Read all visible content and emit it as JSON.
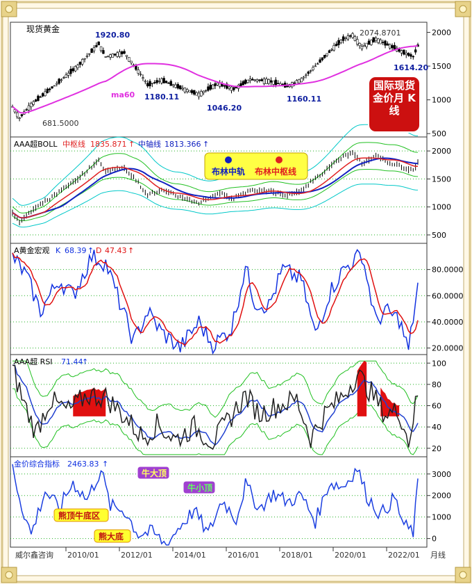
{
  "colors": {
    "background": "#fff8e6",
    "frame": "#d8c58a",
    "ma60": "#e030e0",
    "boll_upper": "#00c8c8",
    "boll_mid_blue": "#1020c0",
    "boll_mid_red": "#e02020",
    "kd_k": "#1030e0",
    "kd_d": "#e01010",
    "rsi_line": "#202020",
    "rsi_blue": "#2040d0",
    "rsi_band": "#20c020",
    "composite": "#1a3ee0"
  },
  "chart_data": [
    {
      "panel": "price",
      "type": "candlestick",
      "title": "现货黄金",
      "annotations": [
        {
          "text": "1920.80",
          "x": "2011/09",
          "y": 1920.8
        },
        {
          "text": "1180.11",
          "x": "2013/06",
          "y": 1180.11
        },
        {
          "text": "1046.20",
          "x": "2015/12",
          "y": 1046.2
        },
        {
          "text": "1160.11",
          "x": "2018/08",
          "y": 1160.11
        },
        {
          "text": "2074.8701",
          "x": "2020/08",
          "y": 2074.87
        },
        {
          "text": "1614.20",
          "x": "2022/09",
          "y": 1614.2
        },
        {
          "text": "681.5000",
          "x": "2008/10",
          "y": 681.5
        },
        {
          "text": "ma60",
          "series": "ma60"
        }
      ],
      "title_box": "国际现货金价月 K线",
      "ylim": [
        450,
        2150
      ],
      "yticks": [
        500,
        1000,
        1500,
        2000
      ]
    },
    {
      "panel": "boll",
      "type": "line",
      "title": "AAA超BOLL",
      "legend": [
        {
          "name": "中枢线",
          "value": "1835.871",
          "arrow": "↑",
          "color": "#e02020"
        },
        {
          "name": "中轴线",
          "value": "1813.366",
          "arrow": "↑",
          "color": "#1020c0"
        }
      ],
      "tag_labels": [
        "布林中轨",
        "布林中枢线"
      ],
      "ylim": [
        350,
        2250
      ],
      "yticks": [
        500,
        1000,
        1500,
        2000
      ]
    },
    {
      "panel": "kd",
      "type": "line",
      "title": "A黄金宏观",
      "legend": [
        {
          "name": "K",
          "value": "68.39",
          "arrow": "↑",
          "color": "#1030e0"
        },
        {
          "name": "D",
          "value": "47.43",
          "arrow": "↑",
          "color": "#e01010"
        }
      ],
      "ylim": [
        15,
        100
      ],
      "yticks": [
        "20.0000",
        "40.0000",
        "60.0000",
        "80.0000"
      ],
      "ytick_values": [
        20,
        40,
        60,
        80
      ]
    },
    {
      "panel": "rsi",
      "type": "line",
      "title": "AAA超 RSI",
      "legend": [
        {
          "name": "",
          "value": "71.44",
          "arrow": "↑",
          "color": "#1030e0"
        }
      ],
      "ylim": [
        12,
        108
      ],
      "yticks": [
        20,
        40,
        60,
        80,
        100
      ]
    },
    {
      "panel": "composite",
      "type": "line",
      "title": "金价综合指标",
      "legend": [
        {
          "name": "",
          "value": "2463.83",
          "arrow": "↑",
          "color": "#1030e0"
        }
      ],
      "tag_labels": [
        "牛大顶",
        "牛小顶",
        "熊顶牛底区",
        "熊大底"
      ],
      "ylim": [
        -400,
        3800
      ],
      "yticks": [
        0,
        1000,
        2000,
        3000
      ]
    }
  ],
  "xaxis": {
    "labels": [
      "2010/01",
      "2012/01",
      "2014/01",
      "2016/01",
      "2018/01",
      "2020/01",
      "2022/01"
    ],
    "period": "月线",
    "source": "威尔鑫咨询"
  }
}
